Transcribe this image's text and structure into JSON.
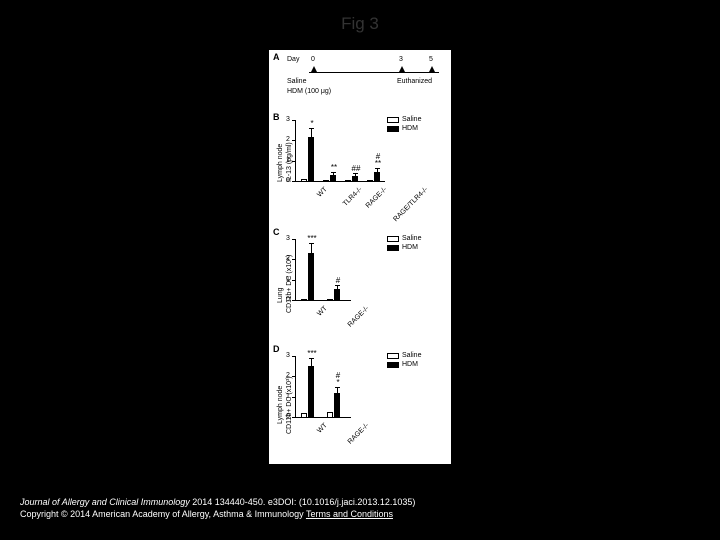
{
  "title": "Fig 3",
  "figure": {
    "background": "#ffffff",
    "panelA": {
      "label": "A",
      "day_label": "Day",
      "days": [
        "0",
        "3",
        "5"
      ],
      "treatments": [
        "Saline",
        "HDM (100 μg)"
      ],
      "endpoint": "Euthanized"
    },
    "panelB": {
      "label": "B",
      "ylabel": "Lymph node\nIL-13 (pg/ml)",
      "ylim": [
        0,
        3
      ],
      "yticks": [
        0,
        1,
        2,
        3
      ],
      "categories": [
        "WT",
        "TLR4-/-",
        "RAGE-/-",
        "RAGE/TLR4-/-"
      ],
      "saline": [
        0.15,
        0.1,
        0.1,
        0.1
      ],
      "hdm": [
        2.2,
        0.35,
        0.3,
        0.5
      ],
      "hdm_err": [
        0.35,
        0.1,
        0.08,
        0.12
      ],
      "sig_hdm": [
        "*",
        "**",
        "##",
        "#\n**"
      ],
      "legend": {
        "saline": "Saline",
        "hdm": "HDM"
      },
      "bar_colors": {
        "saline": "#ffffff",
        "hdm": "#000000"
      }
    },
    "panelC": {
      "label": "C",
      "ylabel": "Lung\nCD11b+ DC (x10^4)",
      "ylim": [
        0,
        3
      ],
      "yticks": [
        0,
        1,
        2,
        3
      ],
      "categories": [
        "WT",
        "RAGE-/-"
      ],
      "saline": [
        0.1,
        0.1
      ],
      "hdm": [
        2.3,
        0.6
      ],
      "hdm_err": [
        0.45,
        0.12
      ],
      "sig_hdm": [
        "***",
        "#"
      ],
      "legend": {
        "saline": "Saline",
        "hdm": "HDM"
      },
      "bar_colors": {
        "saline": "#ffffff",
        "hdm": "#000000"
      }
    },
    "panelD": {
      "label": "D",
      "ylabel": "Lymph node\nCD11b+ DC (x10^3)",
      "ylim": [
        0,
        3
      ],
      "yticks": [
        0,
        1,
        2,
        3
      ],
      "categories": [
        "WT",
        "RAGE-/-"
      ],
      "saline": [
        0.25,
        0.3
      ],
      "hdm": [
        2.5,
        1.2
      ],
      "hdm_err": [
        0.35,
        0.25
      ],
      "sig_hdm": [
        "***",
        "#\n*"
      ],
      "legend": {
        "saline": "Saline",
        "hdm": "HDM"
      },
      "bar_colors": {
        "saline": "#ffffff",
        "hdm": "#000000"
      }
    }
  },
  "caption": {
    "line1_journal": "Journal of Allergy and Clinical Immunology",
    "line1_rest": " 2014 134440-450. e3DOI: (10.1016/j.jaci.2013.12.1035)",
    "line2_pre": "Copyright © 2014 American Academy of Allergy, Asthma & Immunology ",
    "line2_link": "Terms and Conditions"
  }
}
